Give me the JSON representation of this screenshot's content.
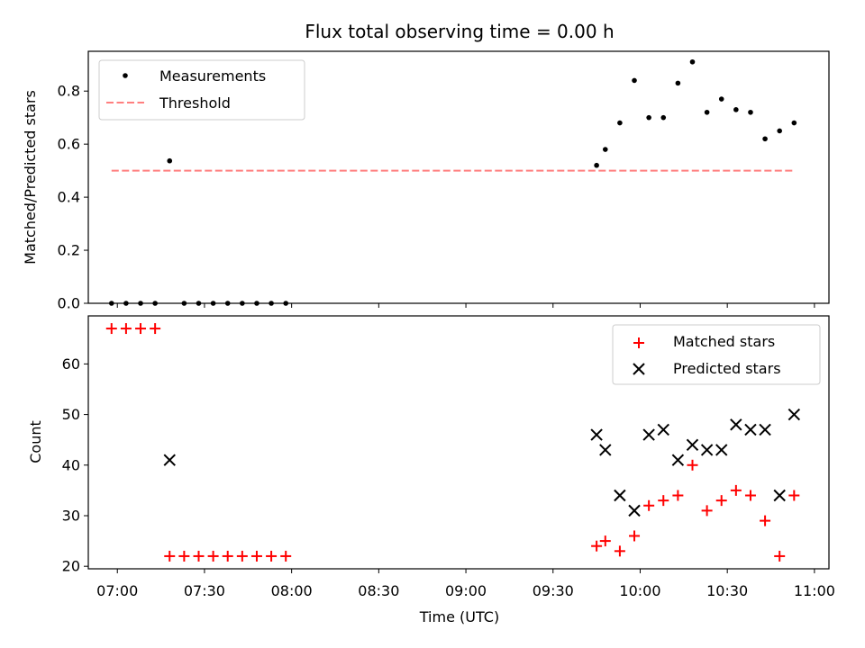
{
  "chart_data": [
    {
      "type": "scatter",
      "title": "Flux total observing time = 0.00 h",
      "xlabel": "",
      "ylabel": "Matched/Predicted stars",
      "xlim": [
        "06:50",
        "11:05"
      ],
      "ylim": [
        0,
        0.95
      ],
      "yticks": [
        0.0,
        0.2,
        0.4,
        0.6,
        0.8
      ],
      "ytick_labels": [
        "0.0",
        "0.2",
        "0.4",
        "0.6",
        "0.8"
      ],
      "legend_position": "upper-left",
      "series": [
        {
          "name": "Measurements",
          "marker": "dot",
          "color": "#000000",
          "points": [
            {
              "x": "06:58",
              "y": 0.0
            },
            {
              "x": "07:03",
              "y": 0.0
            },
            {
              "x": "07:08",
              "y": 0.0
            },
            {
              "x": "07:13",
              "y": 0.0
            },
            {
              "x": "07:18",
              "y": 0.537
            },
            {
              "x": "07:23",
              "y": 0.0
            },
            {
              "x": "07:28",
              "y": 0.0
            },
            {
              "x": "07:33",
              "y": 0.0
            },
            {
              "x": "07:38",
              "y": 0.0
            },
            {
              "x": "07:43",
              "y": 0.0
            },
            {
              "x": "07:48",
              "y": 0.0
            },
            {
              "x": "07:53",
              "y": 0.0
            },
            {
              "x": "07:58",
              "y": 0.0
            },
            {
              "x": "09:45",
              "y": 0.52
            },
            {
              "x": "09:48",
              "y": 0.58
            },
            {
              "x": "09:53",
              "y": 0.68
            },
            {
              "x": "09:58",
              "y": 0.84
            },
            {
              "x": "10:03",
              "y": 0.7
            },
            {
              "x": "10:08",
              "y": 0.7
            },
            {
              "x": "10:13",
              "y": 0.83
            },
            {
              "x": "10:18",
              "y": 0.91
            },
            {
              "x": "10:23",
              "y": 0.72
            },
            {
              "x": "10:28",
              "y": 0.77
            },
            {
              "x": "10:33",
              "y": 0.73
            },
            {
              "x": "10:38",
              "y": 0.72
            },
            {
              "x": "10:43",
              "y": 0.62
            },
            {
              "x": "10:48",
              "y": 0.65
            },
            {
              "x": "10:53",
              "y": 0.68
            }
          ]
        },
        {
          "name": "Threshold",
          "marker": "dashed-line",
          "color": "#ff7f7f",
          "points": [
            {
              "x": "06:58",
              "y": 0.5
            },
            {
              "x": "10:53",
              "y": 0.5
            }
          ]
        }
      ]
    },
    {
      "type": "scatter",
      "xlabel": "Time (UTC)",
      "ylabel": "Count",
      "xlim": [
        "06:50",
        "11:05"
      ],
      "ylim": [
        19.5,
        69.5
      ],
      "xticks": [
        "07:00",
        "07:30",
        "08:00",
        "08:30",
        "09:00",
        "09:30",
        "10:00",
        "10:30",
        "11:00"
      ],
      "yticks": [
        20,
        30,
        40,
        50,
        60
      ],
      "ytick_labels": [
        "20",
        "30",
        "40",
        "50",
        "60"
      ],
      "legend_position": "upper-right",
      "series": [
        {
          "name": "Matched stars",
          "marker": "plus",
          "color": "#ff0000",
          "points": [
            {
              "x": "06:58",
              "y": 67
            },
            {
              "x": "07:03",
              "y": 67
            },
            {
              "x": "07:08",
              "y": 67
            },
            {
              "x": "07:13",
              "y": 67
            },
            {
              "x": "07:18",
              "y": 22
            },
            {
              "x": "07:23",
              "y": 22
            },
            {
              "x": "07:28",
              "y": 22
            },
            {
              "x": "07:33",
              "y": 22
            },
            {
              "x": "07:38",
              "y": 22
            },
            {
              "x": "07:43",
              "y": 22
            },
            {
              "x": "07:48",
              "y": 22
            },
            {
              "x": "07:53",
              "y": 22
            },
            {
              "x": "07:58",
              "y": 22
            },
            {
              "x": "09:45",
              "y": 24
            },
            {
              "x": "09:48",
              "y": 25
            },
            {
              "x": "09:53",
              "y": 23
            },
            {
              "x": "09:58",
              "y": 26
            },
            {
              "x": "10:03",
              "y": 32
            },
            {
              "x": "10:08",
              "y": 33
            },
            {
              "x": "10:13",
              "y": 34
            },
            {
              "x": "10:18",
              "y": 40
            },
            {
              "x": "10:23",
              "y": 31
            },
            {
              "x": "10:28",
              "y": 33
            },
            {
              "x": "10:33",
              "y": 35
            },
            {
              "x": "10:38",
              "y": 34
            },
            {
              "x": "10:43",
              "y": 29
            },
            {
              "x": "10:48",
              "y": 22
            },
            {
              "x": "10:53",
              "y": 34
            }
          ]
        },
        {
          "name": "Predicted stars",
          "marker": "x",
          "color": "#000000",
          "points": [
            {
              "x": "07:18",
              "y": 41
            },
            {
              "x": "09:45",
              "y": 46
            },
            {
              "x": "09:48",
              "y": 43
            },
            {
              "x": "09:53",
              "y": 34
            },
            {
              "x": "09:58",
              "y": 31
            },
            {
              "x": "10:03",
              "y": 46
            },
            {
              "x": "10:08",
              "y": 47
            },
            {
              "x": "10:13",
              "y": 41
            },
            {
              "x": "10:18",
              "y": 44
            },
            {
              "x": "10:23",
              "y": 43
            },
            {
              "x": "10:28",
              "y": 43
            },
            {
              "x": "10:33",
              "y": 48
            },
            {
              "x": "10:38",
              "y": 47
            },
            {
              "x": "10:43",
              "y": 47
            },
            {
              "x": "10:48",
              "y": 34
            },
            {
              "x": "10:53",
              "y": 50
            }
          ]
        }
      ]
    }
  ]
}
